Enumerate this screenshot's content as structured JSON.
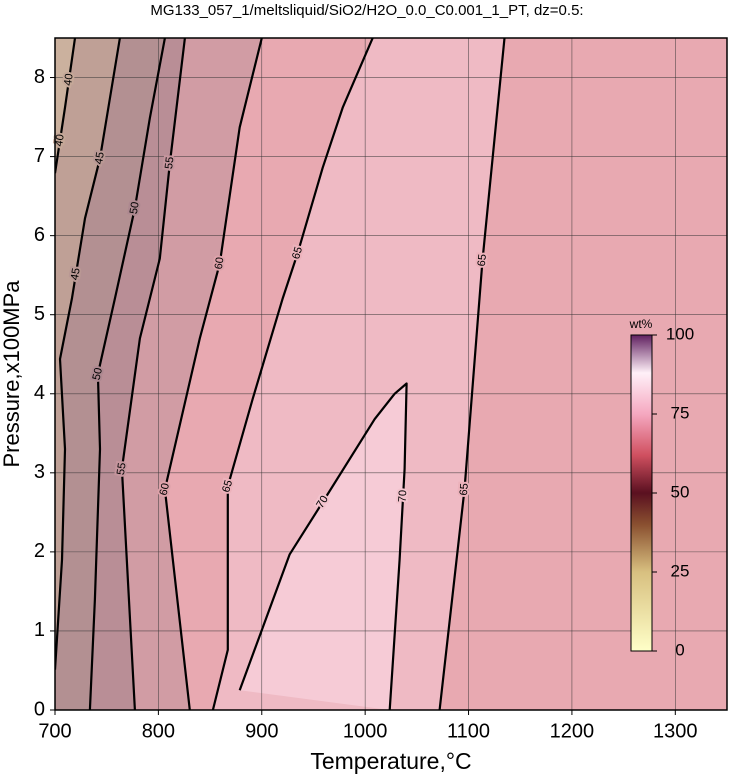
{
  "chart_data": {
    "type": "contour",
    "title": "MG133_057_1/meltsliquid/SiO2/H2O_0.0_C0.001_1_PT, dz=0.5:",
    "x_label": "Temperature,°C",
    "y_label": "Pressure,x100MPa",
    "xlim": [
      700,
      1350
    ],
    "ylim": [
      0,
      8.5
    ],
    "xticks": [
      700,
      800,
      900,
      1000,
      1100,
      1200,
      1300
    ],
    "yticks": [
      0,
      1,
      2,
      3,
      4,
      5,
      6,
      7,
      8
    ],
    "grid": true,
    "contours": [
      {
        "level": 40,
        "x": [
          700,
          709.7,
          719.3
        ],
        "y": [
          6.79,
          7.62,
          8.5
        ]
      },
      {
        "level": 45,
        "x": [
          700,
          706.8,
          709.7,
          704.8,
          716.4,
          729,
          743.5,
          762.8
        ],
        "y": [
          0.51,
          1.9,
          3.3,
          4.44,
          5.21,
          6.22,
          6.98,
          8.5
        ]
      },
      {
        "level": 50,
        "x": [
          733.8,
          738.6,
          743.5,
          741.5,
          758,
          777.3,
          791.8,
          806.3
        ],
        "y": [
          0,
          1.4,
          3.3,
          4.25,
          5.21,
          6.35,
          7.49,
          8.5
        ]
      },
      {
        "level": 55,
        "x": [
          777.3,
          764.7,
          782.1,
          801.4,
          811.1,
          825.6
        ],
        "y": [
          0,
          3.05,
          4.7,
          5.71,
          6.92,
          8.5
        ]
      },
      {
        "level": 60,
        "x": [
          830.4,
          806.3,
          840.1,
          859.4,
          878.7,
          900
        ],
        "y": [
          0,
          2.79,
          4.7,
          5.65,
          7.37,
          8.5
        ]
      },
      {
        "level": 65,
        "x": [
          852.7,
          867.1,
          867.1,
          891.3,
          920.3,
          934.8,
          958.9,
          978.3,
          1007.3
        ],
        "y": [
          0,
          0.76,
          2.83,
          3.94,
          5.21,
          5.78,
          6.86,
          7.62,
          8.5
        ]
      },
      {
        "level": 70,
        "x": [
          878.7,
          927,
          958.9,
          1009.2,
          1028.5,
          1040.1,
          1038.2,
          1033.3,
          1023.7
        ],
        "y": [
          0.25,
          1.97,
          2.63,
          3.68,
          4.0,
          4.13,
          3.05,
          1.9,
          0
        ]
      },
      {
        "level": 65,
        "x": [
          1072,
          1096.1,
          1113.5,
          1134.8
        ],
        "y": [
          0,
          2.79,
          5.69,
          8.5
        ]
      }
    ],
    "colorbar": {
      "label": "wt%",
      "lim": [
        0,
        100
      ],
      "ticks": [
        0,
        25,
        50,
        75,
        100
      ],
      "stops": [
        0,
        25,
        40,
        50,
        62,
        75,
        88,
        100
      ],
      "colors": [
        "#ffffc8",
        "#d8c080",
        "#8a5030",
        "#5a1020",
        "#d05060",
        "#f5a8c0",
        "#fff0f8",
        "#602060"
      ]
    }
  }
}
